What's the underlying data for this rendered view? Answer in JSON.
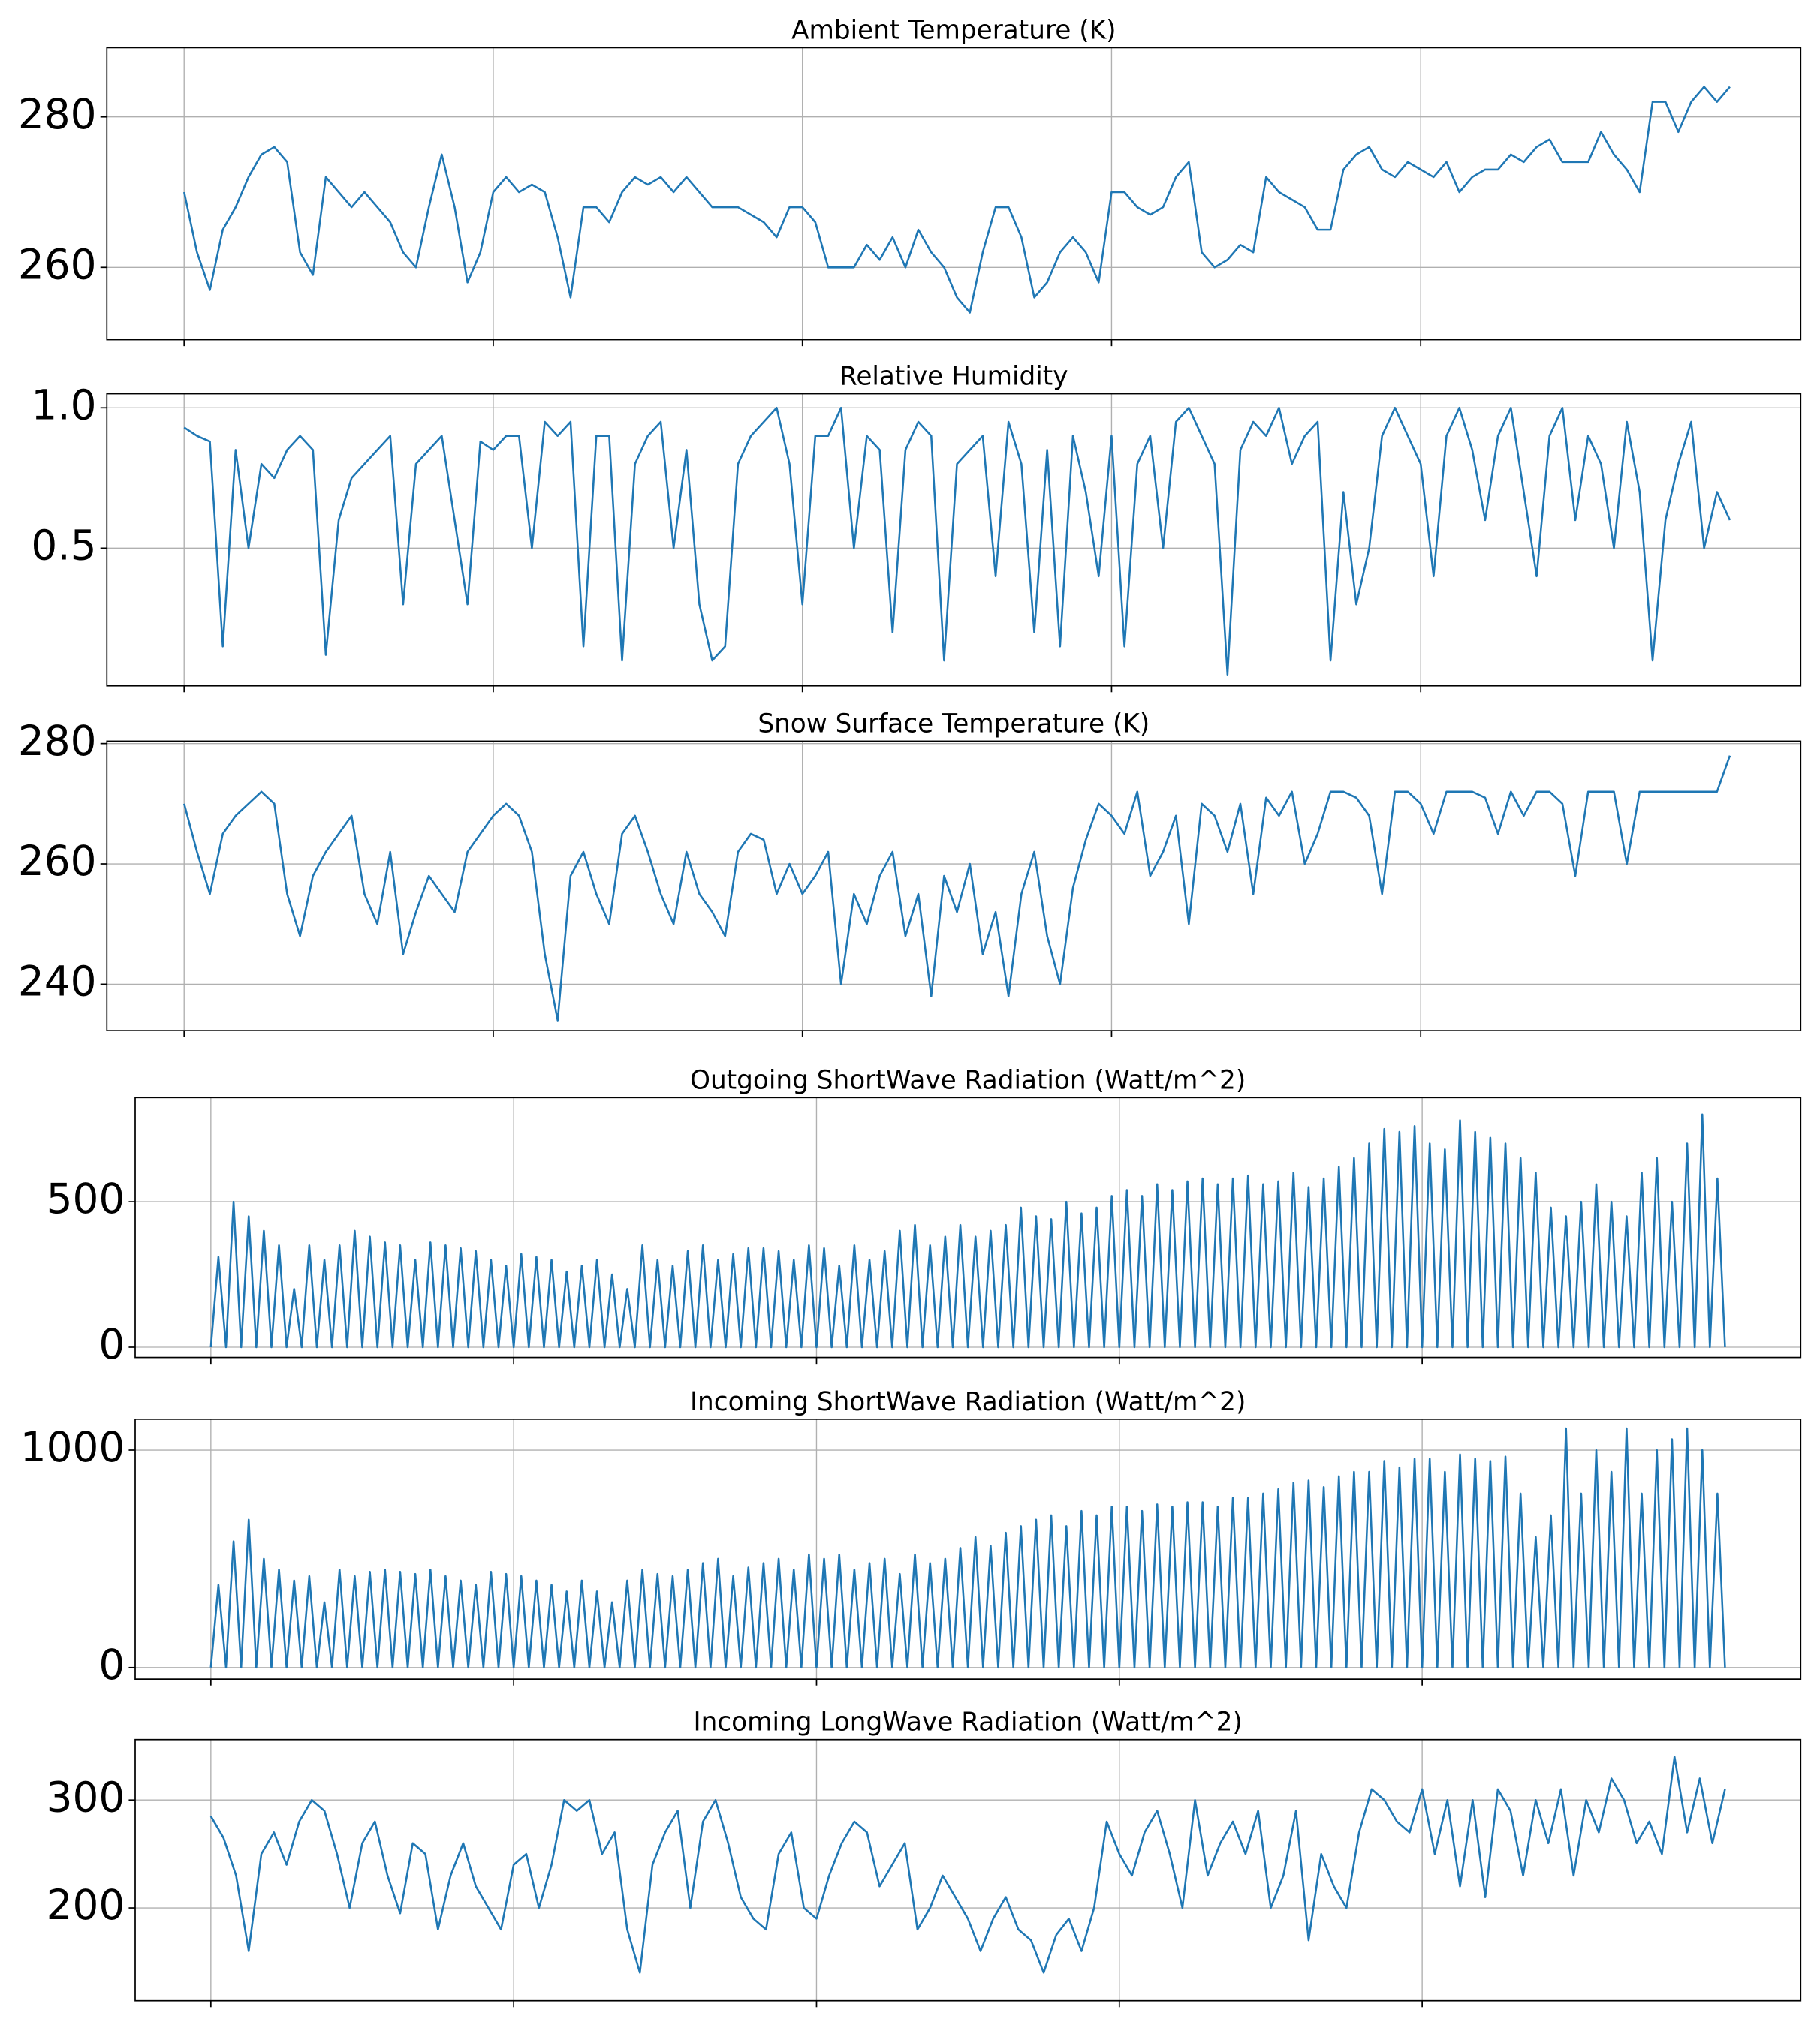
{
  "chart_data": [
    {
      "type": "line",
      "title": "Ambient Temperature (K)",
      "color": "#1f77b4",
      "grid": true,
      "xlim": [
        -6,
        125.5
      ],
      "xticks": [
        0,
        24,
        48,
        72,
        96
      ],
      "ylim": [
        250.4,
        289.2
      ],
      "yticks": [
        260,
        280
      ],
      "values": [
        270,
        262,
        257,
        265,
        268,
        272,
        275,
        276,
        274,
        262,
        259,
        272,
        270,
        268,
        270,
        268,
        266,
        262,
        260,
        268,
        275,
        268,
        258,
        262,
        270,
        272,
        270,
        271,
        270,
        264,
        256,
        268,
        268,
        266,
        270,
        272,
        271,
        272,
        270,
        272,
        270,
        268,
        268,
        268,
        267,
        266,
        264,
        268,
        268,
        266,
        260,
        260,
        260,
        263,
        261,
        264,
        260,
        265,
        262,
        260,
        256,
        254,
        262,
        268,
        268,
        264,
        256,
        258,
        262,
        264,
        262,
        258,
        270,
        270,
        268,
        267,
        268,
        272,
        274,
        262,
        260,
        261,
        263,
        262,
        272,
        270,
        269,
        268,
        265,
        265,
        273,
        275,
        276,
        273,
        272,
        274,
        273,
        272,
        274,
        270,
        272,
        273,
        273,
        275,
        274,
        276,
        277,
        274,
        274,
        274,
        278,
        275,
        273,
        270,
        282,
        282,
        278,
        282,
        284,
        282,
        284
      ]
    },
    {
      "type": "line",
      "title": "Relative Humidity",
      "color": "#1f77b4",
      "grid": true,
      "xlim": [
        -6,
        125.5
      ],
      "xticks": [
        0,
        24,
        48,
        72,
        96
      ],
      "ylim": [
        0.01,
        1.05
      ],
      "yticks": [
        0.5,
        {
          "value": 1,
          "label": "1.0"
        }
      ],
      "values": [
        0.93,
        0.9,
        0.88,
        0.15,
        0.85,
        0.5,
        0.8,
        0.75,
        0.85,
        0.9,
        0.85,
        0.12,
        0.6,
        0.75,
        0.8,
        0.85,
        0.9,
        0.3,
        0.8,
        0.85,
        0.9,
        0.6,
        0.3,
        0.88,
        0.85,
        0.9,
        0.9,
        0.5,
        0.95,
        0.9,
        0.95,
        0.15,
        0.9,
        0.9,
        0.1,
        0.8,
        0.9,
        0.95,
        0.5,
        0.85,
        0.3,
        0.1,
        0.15,
        0.8,
        0.9,
        0.95,
        1.0,
        0.8,
        0.3,
        0.9,
        0.9,
        1.0,
        0.5,
        0.9,
        0.85,
        0.2,
        0.85,
        0.95,
        0.9,
        0.1,
        0.8,
        0.85,
        0.9,
        0.4,
        0.95,
        0.8,
        0.2,
        0.85,
        0.15,
        0.9,
        0.7,
        0.4,
        0.9,
        0.15,
        0.8,
        0.9,
        0.5,
        0.95,
        1.0,
        0.9,
        0.8,
        0.05,
        0.85,
        0.95,
        0.9,
        1.0,
        0.8,
        0.9,
        0.95,
        0.1,
        0.7,
        0.3,
        0.5,
        0.9,
        1.0,
        0.9,
        0.8,
        0.4,
        0.9,
        1.0,
        0.85,
        0.6,
        0.9,
        1.0,
        0.7,
        0.4,
        0.9,
        1.0,
        0.6,
        0.9,
        0.8,
        0.5,
        0.95,
        0.7,
        0.1,
        0.6,
        0.8,
        0.95,
        0.5,
        0.7,
        0.6
      ]
    },
    {
      "type": "line",
      "title": "Snow Surface Temperature (K)",
      "color": "#1f77b4",
      "grid": true,
      "xlim": [
        -6,
        125.5
      ],
      "xticks": [
        0,
        24,
        48,
        72,
        96
      ],
      "ylim": [
        232.3,
        280.4
      ],
      "yticks": [
        240,
        260,
        280
      ],
      "values": [
        270,
        262,
        255,
        265,
        268,
        270,
        272,
        270,
        255,
        248,
        258,
        262,
        265,
        268,
        255,
        250,
        262,
        245,
        252,
        258,
        255,
        252,
        262,
        265,
        268,
        270,
        268,
        262,
        245,
        234,
        258,
        262,
        255,
        250,
        265,
        268,
        262,
        255,
        250,
        262,
        255,
        252,
        248,
        262,
        265,
        264,
        255,
        260,
        255,
        258,
        262,
        240,
        255,
        250,
        258,
        262,
        248,
        255,
        238,
        258,
        252,
        260,
        245,
        252,
        238,
        255,
        262,
        248,
        240,
        256,
        264,
        270,
        268,
        265,
        272,
        258,
        262,
        268,
        250,
        270,
        268,
        262,
        270,
        255,
        271,
        268,
        272,
        260,
        265,
        272,
        272,
        271,
        268,
        255,
        272,
        272,
        270,
        265,
        272,
        272,
        272,
        271,
        265,
        272,
        268,
        272,
        272,
        270,
        258,
        272,
        272,
        272,
        260,
        272,
        272,
        272,
        272,
        272,
        272,
        272,
        278
      ]
    },
    {
      "type": "line",
      "title": "Outgoing ShortWave Radiation (Watt/m^2)",
      "color": "#1f77b4",
      "grid": true,
      "xlim": [
        -10,
        210
      ],
      "xticks": [
        0,
        40,
        80,
        120,
        160
      ],
      "ylim": [
        -35,
        858
      ],
      "yticks": [
        0,
        500
      ],
      "values": [
        0,
        310,
        0,
        500,
        0,
        450,
        0,
        400,
        0,
        350,
        0,
        200,
        0,
        350,
        0,
        300,
        0,
        350,
        0,
        400,
        0,
        380,
        0,
        360,
        0,
        350,
        0,
        300,
        0,
        360,
        0,
        350,
        0,
        340,
        0,
        330,
        0,
        300,
        0,
        280,
        0,
        320,
        0,
        310,
        0,
        300,
        0,
        260,
        0,
        280,
        0,
        300,
        0,
        250,
        0,
        200,
        0,
        350,
        0,
        300,
        0,
        280,
        0,
        330,
        0,
        350,
        0,
        300,
        0,
        320,
        0,
        340,
        0,
        340,
        0,
        330,
        0,
        300,
        0,
        350,
        0,
        340,
        0,
        280,
        0,
        350,
        0,
        300,
        0,
        330,
        0,
        400,
        0,
        420,
        0,
        350,
        0,
        380,
        0,
        420,
        0,
        380,
        0,
        400,
        0,
        420,
        0,
        480,
        0,
        450,
        0,
        440,
        0,
        500,
        0,
        460,
        0,
        480,
        0,
        520,
        0,
        540,
        0,
        520,
        0,
        560,
        0,
        540,
        0,
        570,
        0,
        580,
        0,
        560,
        0,
        580,
        0,
        590,
        0,
        560,
        0,
        570,
        0,
        600,
        0,
        550,
        0,
        580,
        0,
        620,
        0,
        650,
        0,
        700,
        0,
        750,
        0,
        740,
        0,
        760,
        0,
        700,
        0,
        680,
        0,
        780,
        0,
        740,
        0,
        720,
        0,
        700,
        0,
        650,
        0,
        600,
        0,
        480,
        0,
        450,
        0,
        500,
        0,
        560,
        0,
        500,
        0,
        450,
        0,
        600,
        0,
        650,
        0,
        500,
        0,
        700,
        0,
        800,
        0,
        580,
        0
      ]
    },
    {
      "type": "line",
      "title": "Incoming ShortWave Radiation (Watt/m^2)",
      "color": "#1f77b4",
      "grid": true,
      "xlim": [
        -10,
        210
      ],
      "xticks": [
        0,
        40,
        80,
        120,
        160
      ],
      "ylim": [
        -53,
        1142
      ],
      "yticks": [
        0,
        1000
      ],
      "values": [
        0,
        380,
        0,
        580,
        0,
        680,
        0,
        500,
        0,
        450,
        0,
        400,
        0,
        420,
        0,
        300,
        0,
        450,
        0,
        420,
        0,
        440,
        0,
        450,
        0,
        440,
        0,
        430,
        0,
        450,
        0,
        420,
        0,
        400,
        0,
        380,
        0,
        440,
        0,
        430,
        0,
        420,
        0,
        400,
        0,
        380,
        0,
        350,
        0,
        400,
        0,
        350,
        0,
        300,
        0,
        400,
        0,
        450,
        0,
        430,
        0,
        420,
        0,
        450,
        0,
        480,
        0,
        500,
        0,
        420,
        0,
        460,
        0,
        480,
        0,
        500,
        0,
        450,
        0,
        520,
        0,
        500,
        0,
        520,
        0,
        450,
        0,
        480,
        0,
        500,
        0,
        430,
        0,
        520,
        0,
        480,
        0,
        500,
        0,
        550,
        0,
        600,
        0,
        560,
        0,
        620,
        0,
        650,
        0,
        680,
        0,
        700,
        0,
        650,
        0,
        720,
        0,
        700,
        0,
        740,
        0,
        740,
        0,
        720,
        0,
        750,
        0,
        740,
        0,
        760,
        0,
        760,
        0,
        740,
        0,
        780,
        0,
        780,
        0,
        800,
        0,
        820,
        0,
        850,
        0,
        860,
        0,
        830,
        0,
        880,
        0,
        900,
        0,
        900,
        0,
        950,
        0,
        920,
        0,
        960,
        0,
        960,
        0,
        900,
        0,
        980,
        0,
        960,
        0,
        950,
        0,
        970,
        0,
        800,
        0,
        600,
        0,
        700,
        0,
        1100,
        0,
        800,
        0,
        1000,
        0,
        900,
        0,
        1100,
        0,
        800,
        0,
        1000,
        0,
        1050,
        0,
        1100,
        0,
        1000,
        0,
        800,
        0
      ]
    },
    {
      "type": "line",
      "title": "Incoming LongWave Radiation (Watt/m^2)",
      "color": "#1f77b4",
      "grid": true,
      "xlim": [
        -6,
        126
      ],
      "xticks": [
        0,
        24,
        48,
        72,
        96
      ],
      "ylim": [
        114,
        356
      ],
      "yticks": [
        200,
        300
      ],
      "values": [
        285,
        265,
        230,
        160,
        250,
        270,
        240,
        280,
        300,
        290,
        250,
        200,
        260,
        280,
        230,
        195,
        260,
        250,
        180,
        230,
        260,
        220,
        200,
        180,
        240,
        250,
        200,
        240,
        300,
        290,
        300,
        250,
        270,
        180,
        140,
        240,
        270,
        290,
        200,
        280,
        300,
        260,
        210,
        190,
        180,
        250,
        270,
        200,
        190,
        230,
        260,
        280,
        270,
        220,
        240,
        260,
        180,
        200,
        230,
        210,
        190,
        160,
        190,
        210,
        180,
        170,
        140,
        175,
        190,
        160,
        200,
        280,
        250,
        230,
        270,
        290,
        250,
        200,
        300,
        230,
        260,
        280,
        250,
        290,
        200,
        230,
        290,
        170,
        250,
        220,
        200,
        270,
        310,
        300,
        280,
        270,
        310,
        250,
        300,
        220,
        300,
        210,
        310,
        290,
        230,
        300,
        260,
        310,
        230,
        300,
        270,
        320,
        300,
        260,
        280,
        250,
        340,
        270,
        320,
        260,
        310
      ]
    }
  ]
}
